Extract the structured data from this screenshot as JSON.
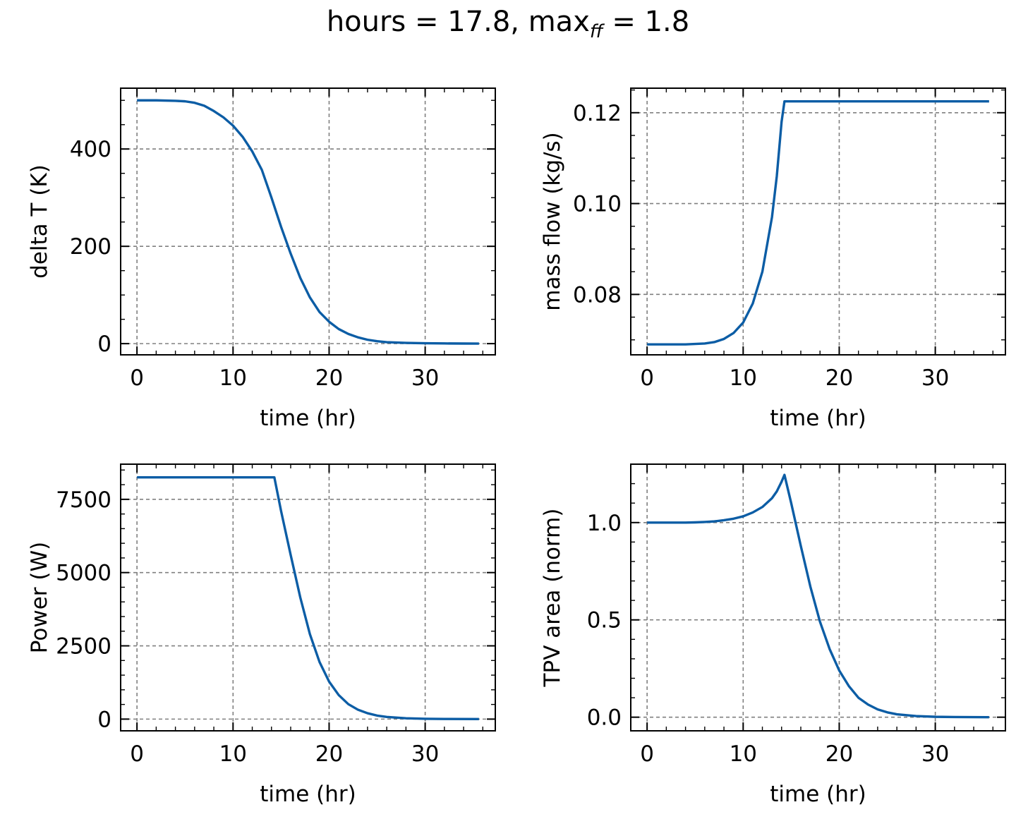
{
  "figure": {
    "title_main": "hours = 17.8, max",
    "title_sub": "ff",
    "title_tail": " = 1.8"
  },
  "colors": {
    "line": "#0c5da5",
    "grid": "#808080",
    "axes": "#000000"
  },
  "chart_data": [
    {
      "type": "line",
      "xlabel": "time (hr)",
      "ylabel": "delta T (K)",
      "xlim": [
        -1.7,
        37.3
      ],
      "ylim": [
        -23,
        525
      ],
      "xticks": [
        0,
        10,
        20,
        30
      ],
      "yticks": [
        0,
        200,
        400
      ],
      "xtick_labels": [
        "0",
        "10",
        "20",
        "30"
      ],
      "ytick_labels": [
        "0",
        "200",
        "400"
      ],
      "x_minor": 2,
      "y_minor": 50,
      "grid": true,
      "series": [
        {
          "x": [
            0,
            2,
            4,
            5,
            6,
            7,
            8,
            9,
            10,
            11,
            12,
            13,
            14,
            15,
            16,
            17,
            18,
            19,
            20,
            21,
            22,
            23,
            24,
            25,
            26,
            28,
            30,
            32,
            34,
            35.6
          ],
          "y": [
            500,
            500,
            499,
            498,
            495,
            489,
            478,
            465,
            448,
            425,
            395,
            357,
            300,
            240,
            185,
            135,
            95,
            65,
            45,
            30,
            20,
            13,
            8,
            5,
            3,
            1.5,
            0.8,
            0.4,
            0.2,
            0.1
          ]
        }
      ]
    },
    {
      "type": "line",
      "xlabel": "time (hr)",
      "ylabel": "mass flow (kg/s)",
      "xlim": [
        -1.7,
        37.3
      ],
      "ylim": [
        0.0667,
        0.1254
      ],
      "xticks": [
        0,
        10,
        20,
        30
      ],
      "yticks": [
        0.08,
        0.1,
        0.12
      ],
      "xtick_labels": [
        "0",
        "10",
        "20",
        "30"
      ],
      "ytick_labels": [
        "0.08",
        "0.10",
        "0.12"
      ],
      "x_minor": 2,
      "y_minor": 0.005,
      "grid": true,
      "series": [
        {
          "x": [
            0,
            2,
            4,
            5,
            6,
            7,
            8,
            9,
            10,
            11,
            12,
            13,
            13.5,
            14,
            14.3,
            16,
            20,
            25,
            30,
            35.6
          ],
          "y": [
            0.069,
            0.069,
            0.069,
            0.0691,
            0.0692,
            0.0695,
            0.0702,
            0.0715,
            0.0738,
            0.078,
            0.085,
            0.097,
            0.106,
            0.118,
            0.1225,
            0.1225,
            0.1225,
            0.1225,
            0.1225,
            0.1225
          ]
        }
      ]
    },
    {
      "type": "line",
      "xlabel": "time (hr)",
      "ylabel": "Power (W)",
      "xlim": [
        -1.7,
        37.3
      ],
      "ylim": [
        -400,
        8700
      ],
      "xticks": [
        0,
        10,
        20,
        30
      ],
      "yticks": [
        0,
        2500,
        5000,
        7500
      ],
      "xtick_labels": [
        "0",
        "10",
        "20",
        "30"
      ],
      "ytick_labels": [
        "0",
        "2500",
        "5000",
        "7500"
      ],
      "x_minor": 2,
      "y_minor": 500,
      "grid": true,
      "series": [
        {
          "x": [
            0,
            5,
            10,
            14.3,
            15,
            16,
            17,
            18,
            19,
            20,
            21,
            22,
            23,
            24,
            25,
            26,
            28,
            30,
            32,
            35.6
          ],
          "y": [
            8250,
            8250,
            8250,
            8250,
            7100,
            5600,
            4150,
            2900,
            1950,
            1280,
            820,
            510,
            320,
            200,
            120,
            75,
            30,
            12,
            5,
            1
          ]
        }
      ]
    },
    {
      "type": "line",
      "xlabel": "time (hr)",
      "ylabel": "TPV area (norm)",
      "xlim": [
        -1.7,
        37.3
      ],
      "ylim": [
        -0.07,
        1.3
      ],
      "xticks": [
        0,
        10,
        20,
        30
      ],
      "yticks": [
        0.0,
        0.5,
        1.0
      ],
      "xtick_labels": [
        "0",
        "10",
        "20",
        "30"
      ],
      "ytick_labels": [
        "0.0",
        "0.5",
        "1.0"
      ],
      "x_minor": 2,
      "y_minor": 0.1,
      "grid": true,
      "series": [
        {
          "x": [
            0,
            2,
            4,
            5,
            6,
            7,
            8,
            9,
            10,
            11,
            12,
            13,
            13.5,
            14,
            14.3,
            15,
            16,
            17,
            18,
            19,
            20,
            21,
            22,
            23,
            24,
            25,
            26,
            28,
            30,
            32,
            35.6
          ],
          "y": [
            1.0,
            1.0,
            1.0,
            1.001,
            1.003,
            1.006,
            1.012,
            1.02,
            1.032,
            1.052,
            1.08,
            1.125,
            1.16,
            1.21,
            1.245,
            1.1,
            0.88,
            0.67,
            0.49,
            0.35,
            0.24,
            0.16,
            0.1,
            0.065,
            0.04,
            0.025,
            0.015,
            0.006,
            0.002,
            0.001,
            0.0
          ]
        }
      ]
    }
  ]
}
